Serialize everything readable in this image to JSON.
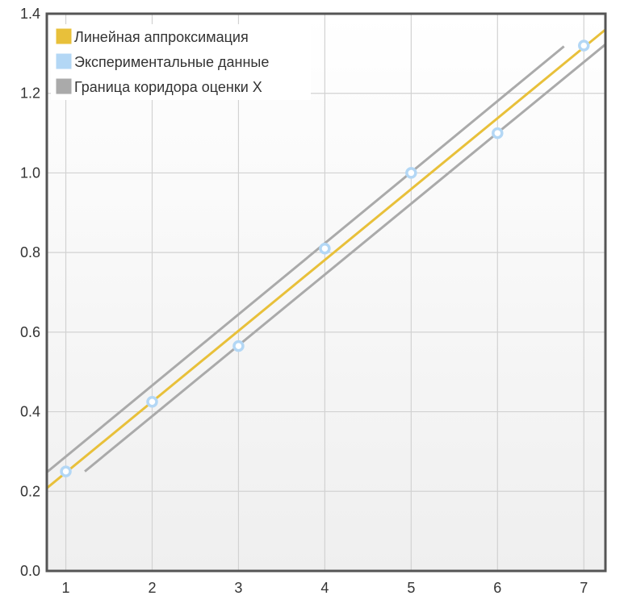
{
  "chart_data": {
    "type": "line",
    "title": "",
    "xlabel": "",
    "ylabel": "",
    "xlim": [
      0.78,
      7.25
    ],
    "ylim": [
      0,
      1.4
    ],
    "x_ticks": [
      1,
      2,
      3,
      4,
      5,
      6,
      7
    ],
    "y_ticks": [
      0.0,
      0.2,
      0.4,
      0.6,
      0.8,
      1.0,
      1.2,
      1.4
    ],
    "x_tick_labels": [
      "1",
      "2",
      "3",
      "4",
      "5",
      "6",
      "7"
    ],
    "y_tick_labels": [
      "0.0",
      "0.2",
      "0.4",
      "0.6",
      "0.8",
      "1.0",
      "1.2",
      "1.4"
    ],
    "grid": true,
    "legend_position": "top-left",
    "series": [
      {
        "name": "Линейная аппроксимация",
        "kind": "line",
        "color": "#e8c03a",
        "x": [
          0.78,
          7.25
        ],
        "y": [
          0.208,
          1.36
        ]
      },
      {
        "name": "Экспериментальные данные",
        "kind": "scatter",
        "color": "#b3d7f5",
        "x": [
          1,
          2,
          3,
          4,
          5,
          6,
          7
        ],
        "y": [
          0.25,
          0.425,
          0.565,
          0.81,
          1.0,
          1.1,
          1.32
        ]
      },
      {
        "name": "Граница коридора оценки X",
        "kind": "line",
        "color": "#aaaaaa",
        "x": [
          0.78,
          6.77
        ],
        "y": [
          0.248,
          1.318
        ]
      },
      {
        "name": "",
        "kind": "line",
        "color": "#aaaaaa",
        "x": [
          1.22,
          7.25
        ],
        "y": [
          0.25,
          1.323
        ]
      }
    ],
    "legend": [
      {
        "label": "Линейная аппроксимация",
        "color": "#e8c03a"
      },
      {
        "label": "Экспериментальные данные",
        "color": "#b3d7f5"
      },
      {
        "label": "Граница коридора оценки X",
        "color": "#aaaaaa"
      }
    ]
  }
}
